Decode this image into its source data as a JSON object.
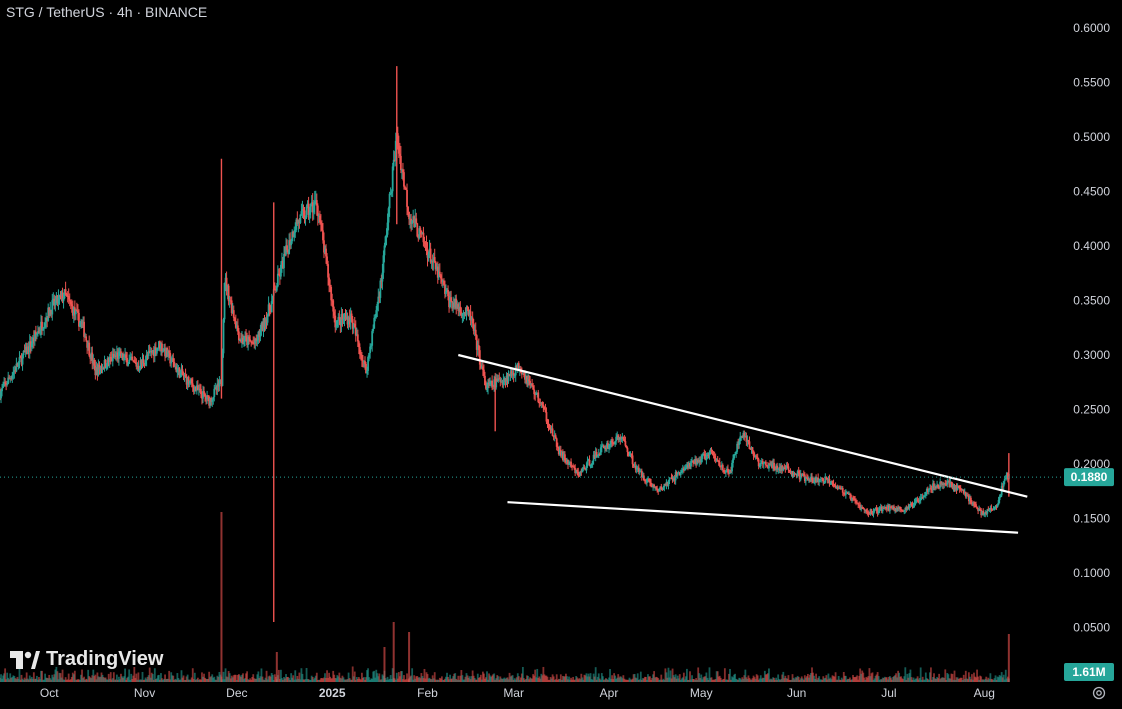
{
  "header": {
    "title": "STG / TetherUS · 4h · BINANCE"
  },
  "branding": {
    "logo_text": "TradingView",
    "logo_icon": "tradingview-logo-icon"
  },
  "colors": {
    "up": "#26a69a",
    "down": "#ef5350",
    "price_label_bg": "#26a69a",
    "background": "#000000",
    "trendline": "#ffffff"
  },
  "chart_data": {
    "type": "candlestick",
    "symbol": "STG / TetherUS",
    "interval": "4h",
    "exchange": "BINANCE",
    "x_labels": [
      "Oct",
      "Nov",
      "Dec",
      "2025",
      "Feb",
      "Mar",
      "Apr",
      "May",
      "Jun",
      "Jul",
      "Aug"
    ],
    "y_ticks": [
      "0.6000",
      "0.5500",
      "0.5000",
      "0.4500",
      "0.4000",
      "0.3500",
      "0.3000",
      "0.2500",
      "0.2000",
      "0.1500",
      "0.1000",
      "0.0500"
    ],
    "y_range": [
      0.0,
      0.6
    ],
    "current_price": "0.1880",
    "current_volume": "1.61M",
    "price_path": [
      [
        "2024-09-15",
        0.265
      ],
      [
        "2024-09-25",
        0.31
      ],
      [
        "2024-10-02",
        0.345
      ],
      [
        "2024-10-06",
        0.355
      ],
      [
        "2024-10-12",
        0.325
      ],
      [
        "2024-10-16",
        0.285
      ],
      [
        "2024-10-23",
        0.3
      ],
      [
        "2024-10-30",
        0.29
      ],
      [
        "2024-11-06",
        0.31
      ],
      [
        "2024-11-12",
        0.285
      ],
      [
        "2024-11-18",
        0.268
      ],
      [
        "2024-11-22",
        0.258
      ],
      [
        "2024-11-26",
        0.275
      ],
      [
        "2024-11-27",
        0.37
      ],
      [
        "2024-12-02",
        0.315
      ],
      [
        "2024-12-07",
        0.31
      ],
      [
        "2024-12-12",
        0.345
      ],
      [
        "2024-12-16",
        0.385
      ],
      [
        "2024-12-20",
        0.42
      ],
      [
        "2024-12-27",
        0.44
      ],
      [
        "2025-01-02",
        0.33
      ],
      [
        "2025-01-07",
        0.335
      ],
      [
        "2025-01-12",
        0.285
      ],
      [
        "2025-01-17",
        0.37
      ],
      [
        "2025-01-20",
        0.45
      ],
      [
        "2025-01-22",
        0.5
      ],
      [
        "2025-01-26",
        0.43
      ],
      [
        "2025-02-02",
        0.39
      ],
      [
        "2025-02-08",
        0.35
      ],
      [
        "2025-02-15",
        0.335
      ],
      [
        "2025-02-20",
        0.27
      ],
      [
        "2025-02-27",
        0.28
      ],
      [
        "2025-03-03",
        0.29
      ],
      [
        "2025-03-10",
        0.255
      ],
      [
        "2025-03-16",
        0.21
      ],
      [
        "2025-03-22",
        0.19
      ],
      [
        "2025-03-30",
        0.215
      ],
      [
        "2025-04-05",
        0.225
      ],
      [
        "2025-04-10",
        0.195
      ],
      [
        "2025-04-17",
        0.175
      ],
      [
        "2025-04-25",
        0.195
      ],
      [
        "2025-05-04",
        0.21
      ],
      [
        "2025-05-10",
        0.19
      ],
      [
        "2025-05-14",
        0.228
      ],
      [
        "2025-05-20",
        0.2
      ],
      [
        "2025-05-29",
        0.195
      ],
      [
        "2025-06-05",
        0.185
      ],
      [
        "2025-06-12",
        0.185
      ],
      [
        "2025-06-18",
        0.17
      ],
      [
        "2025-06-24",
        0.155
      ],
      [
        "2025-06-30",
        0.16
      ],
      [
        "2025-07-07",
        0.158
      ],
      [
        "2025-07-14",
        0.178
      ],
      [
        "2025-07-20",
        0.183
      ],
      [
        "2025-07-25",
        0.175
      ],
      [
        "2025-07-31",
        0.155
      ],
      [
        "2025-08-05",
        0.16
      ],
      [
        "2025-08-08",
        0.19
      ],
      [
        "2025-08-09",
        0.188
      ]
    ],
    "trendlines": [
      {
        "label": "upper",
        "from": [
          "2025-02-11",
          0.3
        ],
        "to": [
          "2025-08-15",
          0.17
        ]
      },
      {
        "label": "lower",
        "from": [
          "2025-02-27",
          0.165
        ],
        "to": [
          "2025-08-12",
          0.137
        ]
      }
    ],
    "spikes": [
      {
        "date": "2024-11-26",
        "high": 0.48,
        "low": 0.26
      },
      {
        "date": "2024-12-13",
        "high": 0.44,
        "low": 0.055
      },
      {
        "date": "2025-01-22",
        "high": 0.565,
        "low": 0.42
      },
      {
        "date": "2025-02-23",
        "high": 0.28,
        "low": 0.23
      },
      {
        "date": "2025-08-09",
        "high": 0.21,
        "low": 0.17
      }
    ]
  }
}
